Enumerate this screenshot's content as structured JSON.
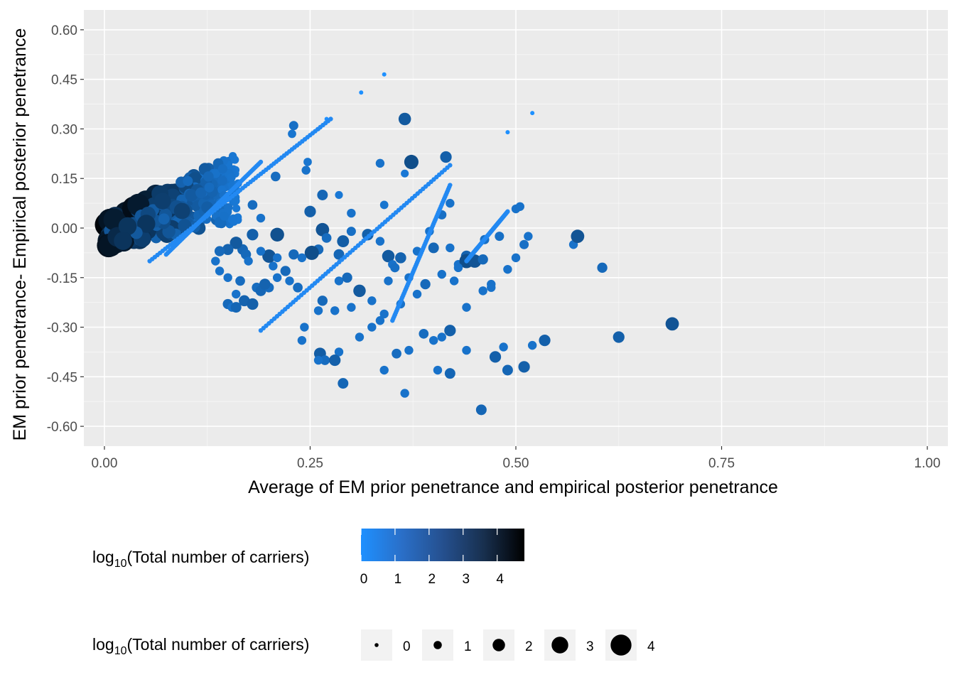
{
  "chart_data": {
    "type": "scatter",
    "xlabel": "Average of EM prior penetrance and empirical posterior penetrance",
    "ylabel": "EM prior penetrance- Empirical posterior penetrance",
    "xlim": [
      -0.025,
      1.025
    ],
    "ylim": [
      -0.66,
      0.66
    ],
    "x_ticks": [
      0.0,
      0.25,
      0.5,
      0.75,
      1.0
    ],
    "x_tick_labels": [
      "0.00",
      "0.25",
      "0.50",
      "0.75",
      "1.00"
    ],
    "y_ticks": [
      0.6,
      0.45,
      0.3,
      0.15,
      0.0,
      -0.15,
      -0.3,
      -0.45,
      -0.6
    ],
    "y_tick_labels": [
      "0.60",
      "0.45",
      "0.30",
      "0.15",
      "0.00",
      "-0.15",
      "-0.30",
      "-0.45",
      "-0.60"
    ],
    "grid": true,
    "legend_position": "bottom",
    "colors": {
      "panel_bg": "#ebebeb",
      "grid_major": "#ffffff",
      "low": "#1e90ff",
      "high": "#000000",
      "size_key_fill": "#000000",
      "key_bg": "#f2f2f2"
    },
    "color_legend": {
      "title_main": "log",
      "title_sub": "10",
      "title_rest": "(Total number of carriers)",
      "range": [
        0,
        4.8
      ],
      "breaks": [
        0,
        1,
        2,
        3,
        4
      ],
      "break_labels": [
        "0",
        "1",
        "2",
        "3",
        "4"
      ]
    },
    "size_legend": {
      "title_main": "log",
      "title_sub": "10",
      "title_rest": "(Total number of carriers)",
      "breaks": [
        0,
        1,
        2,
        3,
        4
      ],
      "break_labels": [
        "0",
        "1",
        "2",
        "3",
        "4"
      ]
    },
    "points": [
      [
        0.34,
        0.465,
        0.0
      ],
      [
        0.312,
        0.41,
        0.0
      ],
      [
        0.52,
        0.348,
        0.0
      ],
      [
        0.49,
        0.29,
        0.0
      ],
      [
        0.27,
        0.33,
        0.0
      ],
      [
        0.26,
        0.3,
        0.0
      ],
      [
        0.23,
        0.31,
        1.1
      ],
      [
        0.228,
        0.285,
        0.9
      ],
      [
        0.365,
        0.33,
        1.8
      ],
      [
        0.373,
        0.2,
        2.2
      ],
      [
        0.415,
        0.215,
        1.6
      ],
      [
        0.335,
        0.196,
        1.0
      ],
      [
        0.365,
        0.165,
        0.8
      ],
      [
        0.247,
        0.2,
        0.9
      ],
      [
        0.245,
        0.175,
        1.0
      ],
      [
        0.208,
        0.156,
        1.2
      ],
      [
        0.265,
        0.1,
        1.4
      ],
      [
        0.285,
        0.1,
        0.8
      ],
      [
        0.25,
        0.05,
        1.6
      ],
      [
        0.3,
        0.045,
        1.0
      ],
      [
        0.34,
        0.07,
        0.9
      ],
      [
        0.42,
        0.075,
        1.0
      ],
      [
        0.41,
        0.04,
        1.1
      ],
      [
        0.505,
        0.065,
        1.0
      ],
      [
        0.5,
        0.058,
        1.0
      ],
      [
        0.18,
        0.07,
        1.2
      ],
      [
        0.19,
        0.03,
        1.0
      ],
      [
        0.18,
        -0.02,
        1.6
      ],
      [
        0.21,
        -0.02,
        2.1
      ],
      [
        0.265,
        -0.005,
        2.0
      ],
      [
        0.27,
        -0.03,
        1.2
      ],
      [
        0.26,
        -0.065,
        1.3
      ],
      [
        0.29,
        -0.04,
        1.7
      ],
      [
        0.3,
        -0.01,
        1.1
      ],
      [
        0.32,
        -0.02,
        1.6
      ],
      [
        0.335,
        -0.04,
        1.0
      ],
      [
        0.345,
        -0.085,
        1.8
      ],
      [
        0.36,
        -0.09,
        1.5
      ],
      [
        0.38,
        -0.07,
        1.0
      ],
      [
        0.4,
        -0.06,
        1.4
      ],
      [
        0.395,
        -0.01,
        1.0
      ],
      [
        0.42,
        -0.06,
        1.0
      ],
      [
        0.44,
        -0.085,
        1.5
      ],
      [
        0.43,
        -0.11,
        1.0
      ],
      [
        0.44,
        -0.1,
        2.2
      ],
      [
        0.45,
        -0.1,
        2.0
      ],
      [
        0.462,
        -0.035,
        1.1
      ],
      [
        0.46,
        -0.095,
        1.3
      ],
      [
        0.48,
        -0.025,
        1.1
      ],
      [
        0.51,
        -0.05,
        1.1
      ],
      [
        0.515,
        -0.025,
        1.0
      ],
      [
        0.57,
        -0.05,
        1.0
      ],
      [
        0.575,
        -0.025,
        2.0
      ],
      [
        0.605,
        -0.12,
        1.3
      ],
      [
        0.49,
        -0.125,
        1.0
      ],
      [
        0.35,
        -0.11,
        1.0
      ],
      [
        0.285,
        -0.08,
        1.4
      ],
      [
        0.252,
        -0.075,
        2.2
      ],
      [
        0.24,
        -0.09,
        1.0
      ],
      [
        0.22,
        -0.13,
        1.3
      ],
      [
        0.205,
        -0.115,
        1.0
      ],
      [
        0.2,
        -0.085,
        2.0
      ],
      [
        0.19,
        -0.07,
        1.0
      ],
      [
        0.168,
        -0.065,
        1.4
      ],
      [
        0.16,
        -0.045,
        1.8
      ],
      [
        0.172,
        -0.08,
        1.3
      ],
      [
        0.175,
        -0.1,
        1.0
      ],
      [
        0.15,
        -0.065,
        1.5
      ],
      [
        0.14,
        -0.07,
        1.3
      ],
      [
        0.135,
        -0.1,
        1.0
      ],
      [
        0.15,
        -0.15,
        1.0
      ],
      [
        0.14,
        -0.13,
        1.0
      ],
      [
        0.15,
        -0.23,
        1.3
      ],
      [
        0.155,
        -0.24,
        1.0
      ],
      [
        0.16,
        -0.24,
        1.4
      ],
      [
        0.17,
        -0.22,
        1.5
      ],
      [
        0.18,
        -0.23,
        1.6
      ],
      [
        0.16,
        -0.2,
        1.0
      ],
      [
        0.165,
        -0.16,
        1.2
      ],
      [
        0.185,
        -0.18,
        1.2
      ],
      [
        0.19,
        -0.19,
        1.4
      ],
      [
        0.2,
        -0.18,
        1.2
      ],
      [
        0.195,
        -0.17,
        1.5
      ],
      [
        0.21,
        -0.15,
        1.0
      ],
      [
        0.225,
        -0.16,
        1.0
      ],
      [
        0.235,
        -0.18,
        1.2
      ],
      [
        0.26,
        -0.25,
        1.0
      ],
      [
        0.265,
        -0.22,
        1.3
      ],
      [
        0.28,
        -0.25,
        1.0
      ],
      [
        0.285,
        -0.16,
        1.0
      ],
      [
        0.295,
        -0.15,
        1.3
      ],
      [
        0.31,
        -0.19,
        1.8
      ],
      [
        0.3,
        -0.24,
        1.0
      ],
      [
        0.325,
        -0.22,
        1.0
      ],
      [
        0.325,
        -0.3,
        1.0
      ],
      [
        0.31,
        -0.33,
        1.0
      ],
      [
        0.243,
        -0.3,
        1.0
      ],
      [
        0.24,
        -0.34,
        1.0
      ],
      [
        0.262,
        -0.38,
        1.7
      ],
      [
        0.268,
        -0.4,
        1.2
      ],
      [
        0.26,
        -0.4,
        1.0
      ],
      [
        0.285,
        -0.375,
        1.0
      ],
      [
        0.28,
        -0.4,
        1.6
      ],
      [
        0.29,
        -0.47,
        1.4
      ],
      [
        0.34,
        -0.43,
        1.0
      ],
      [
        0.355,
        -0.38,
        1.2
      ],
      [
        0.37,
        -0.37,
        1.0
      ],
      [
        0.365,
        -0.5,
        1.0
      ],
      [
        0.388,
        -0.32,
        1.2
      ],
      [
        0.4,
        -0.34,
        1.0
      ],
      [
        0.41,
        -0.33,
        1.0
      ],
      [
        0.42,
        -0.31,
        1.6
      ],
      [
        0.405,
        -0.43,
        1.0
      ],
      [
        0.42,
        -0.44,
        1.4
      ],
      [
        0.44,
        -0.37,
        1.0
      ],
      [
        0.475,
        -0.39,
        1.6
      ],
      [
        0.49,
        -0.43,
        1.4
      ],
      [
        0.485,
        -0.36,
        1.0
      ],
      [
        0.51,
        -0.42,
        1.6
      ],
      [
        0.52,
        -0.355,
        1.0
      ],
      [
        0.535,
        -0.34,
        1.6
      ],
      [
        0.458,
        -0.55,
        1.4
      ],
      [
        0.625,
        -0.33,
        1.6
      ],
      [
        0.69,
        -0.29,
        2.0
      ],
      [
        0.34,
        -0.26,
        1.0
      ],
      [
        0.36,
        -0.23,
        1.0
      ],
      [
        0.38,
        -0.2,
        1.0
      ],
      [
        0.39,
        -0.17,
        1.3
      ],
      [
        0.41,
        -0.14,
        1.0
      ],
      [
        0.425,
        -0.16,
        1.0
      ],
      [
        0.43,
        -0.12,
        1.0
      ],
      [
        0.44,
        -0.24,
        1.0
      ],
      [
        0.47,
        -0.17,
        1.0
      ],
      [
        0.46,
        -0.19,
        1.0
      ],
      [
        0.47,
        -0.18,
        1.0
      ],
      [
        0.5,
        -0.09,
        1.0
      ],
      [
        0.335,
        -0.28,
        1.0
      ],
      [
        0.345,
        -0.16,
        1.0
      ],
      [
        0.37,
        -0.15,
        1.0
      ],
      [
        0.353,
        -0.12,
        1.1
      ],
      [
        0.21,
        -0.09,
        1.0
      ],
      [
        0.23,
        -0.08,
        1.3
      ]
    ]
  }
}
